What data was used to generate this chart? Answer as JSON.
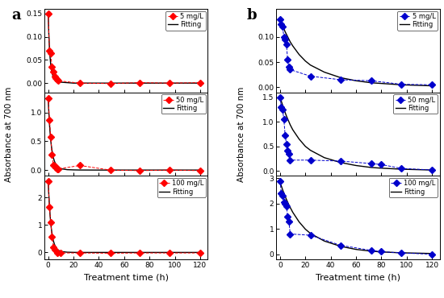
{
  "panel_a_label": "a",
  "panel_b_label": "b",
  "xlabel": "Treatment time (h)",
  "ylabel": "Absorbance at 700 nm",
  "marker_color_a": "#FF0000",
  "marker_color_b": "#0000CC",
  "line_color_fit": "#000000",
  "marker": "D",
  "marker_size": 4,
  "a_5mg_x": [
    0,
    1,
    2,
    3,
    4,
    5,
    6,
    7,
    8,
    25,
    49,
    72,
    96,
    120
  ],
  "a_5mg_y": [
    0.15,
    0.07,
    0.065,
    0.035,
    0.025,
    0.015,
    0.01,
    0.008,
    0.005,
    0.0,
    -0.001,
    0.001,
    0.0,
    0.001
  ],
  "a_5mg_fit_x": [
    0,
    0.5,
    1,
    1.5,
    2,
    2.5,
    3,
    4,
    5,
    6,
    7,
    8,
    10,
    15,
    20,
    25,
    40,
    60,
    80,
    100,
    120
  ],
  "a_5mg_fit_y": [
    0.15,
    0.105,
    0.075,
    0.055,
    0.04,
    0.029,
    0.022,
    0.013,
    0.009,
    0.006,
    0.004,
    0.003,
    0.002,
    0.001,
    0.0,
    0.0,
    0.0,
    0.0,
    0.0,
    0.0,
    0.0
  ],
  "a_5mg_ylim": [
    -0.02,
    0.16
  ],
  "a_5mg_yticks": [
    0.0,
    0.05,
    0.1,
    0.15
  ],
  "a_5mg_label": "5 mg/L",
  "a_50mg_x": [
    0,
    1,
    2,
    3,
    4,
    5,
    6,
    7,
    8,
    25,
    49,
    72,
    96,
    120
  ],
  "a_50mg_y": [
    1.25,
    0.87,
    0.57,
    0.27,
    0.09,
    0.07,
    0.05,
    0.02,
    0.02,
    0.08,
    0.0,
    -0.01,
    0.0,
    -0.01
  ],
  "a_50mg_fit_x": [
    0,
    0.5,
    1,
    1.5,
    2,
    2.5,
    3,
    4,
    5,
    6,
    7,
    8,
    10,
    15,
    20,
    25,
    40,
    60,
    80,
    100,
    120
  ],
  "a_50mg_fit_y": [
    1.25,
    1.0,
    0.8,
    0.65,
    0.52,
    0.42,
    0.34,
    0.22,
    0.15,
    0.1,
    0.068,
    0.047,
    0.023,
    0.007,
    0.003,
    0.001,
    0.0,
    0.0,
    0.0,
    0.0,
    0.0
  ],
  "a_50mg_ylim": [
    -0.1,
    1.35
  ],
  "a_50mg_yticks": [
    0.0,
    0.5,
    1.0
  ],
  "a_50mg_label": "50 mg/L",
  "a_100mg_x": [
    0,
    1,
    2,
    3,
    4,
    5,
    7,
    10,
    25,
    49,
    72,
    96,
    120
  ],
  "a_100mg_y": [
    2.6,
    1.65,
    1.1,
    0.58,
    0.2,
    0.1,
    -0.02,
    -0.02,
    -0.02,
    -0.03,
    -0.02,
    -0.02,
    -0.02
  ],
  "a_100mg_fit_x": [
    0,
    0.5,
    1,
    1.5,
    2,
    2.5,
    3,
    4,
    5,
    6,
    7,
    8,
    10,
    15,
    20,
    25,
    40,
    60,
    80,
    100,
    120
  ],
  "a_100mg_fit_y": [
    2.6,
    2.1,
    1.68,
    1.35,
    1.08,
    0.86,
    0.69,
    0.44,
    0.29,
    0.19,
    0.12,
    0.08,
    0.035,
    0.008,
    0.002,
    0.0,
    0.0,
    0.0,
    0.0,
    0.0,
    0.0
  ],
  "a_100mg_ylim": [
    -0.25,
    2.8
  ],
  "a_100mg_yticks": [
    0,
    1,
    2
  ],
  "a_100mg_label": "100 mg/L",
  "b_5mg_x": [
    0,
    1,
    2,
    3,
    4,
    5,
    6,
    7,
    8,
    24,
    48,
    72,
    96,
    120
  ],
  "b_5mg_y": [
    0.135,
    0.125,
    0.12,
    0.1,
    0.095,
    0.085,
    0.055,
    0.04,
    0.035,
    0.022,
    0.015,
    0.013,
    0.006,
    0.005
  ],
  "b_5mg_fit_x": [
    0,
    1,
    2,
    3,
    4,
    5,
    6,
    7,
    8,
    10,
    15,
    20,
    24,
    35,
    48,
    60,
    72,
    96,
    120
  ],
  "b_5mg_fit_y": [
    0.135,
    0.128,
    0.122,
    0.116,
    0.11,
    0.105,
    0.1,
    0.095,
    0.09,
    0.082,
    0.065,
    0.052,
    0.044,
    0.03,
    0.019,
    0.013,
    0.009,
    0.005,
    0.003
  ],
  "b_5mg_ylim": [
    -0.01,
    0.155
  ],
  "b_5mg_yticks": [
    0.0,
    0.05,
    0.1
  ],
  "b_5mg_label": "5 mg/L",
  "b_50mg_x": [
    0,
    1,
    2,
    3,
    4,
    5,
    6,
    7,
    8,
    24,
    48,
    72,
    80,
    96,
    120
  ],
  "b_50mg_y": [
    1.5,
    1.3,
    1.25,
    1.05,
    0.73,
    0.55,
    0.42,
    0.35,
    0.22,
    0.22,
    0.2,
    0.15,
    0.13,
    0.05,
    0.02
  ],
  "b_50mg_fit_x": [
    0,
    1,
    2,
    3,
    4,
    5,
    6,
    7,
    8,
    10,
    15,
    20,
    24,
    35,
    48,
    60,
    72,
    80,
    96,
    120
  ],
  "b_50mg_fit_y": [
    1.5,
    1.42,
    1.34,
    1.26,
    1.19,
    1.12,
    1.06,
    1.0,
    0.94,
    0.84,
    0.65,
    0.5,
    0.42,
    0.27,
    0.17,
    0.11,
    0.07,
    0.056,
    0.035,
    0.018
  ],
  "b_50mg_ylim": [
    -0.1,
    1.6
  ],
  "b_50mg_yticks": [
    0.0,
    0.5,
    1.0,
    1.5
  ],
  "b_50mg_label": "50 mg/L",
  "b_100mg_x": [
    0,
    1,
    2,
    3,
    4,
    5,
    6,
    7,
    8,
    24,
    48,
    72,
    80,
    96,
    120
  ],
  "b_100mg_y": [
    2.9,
    2.4,
    2.3,
    2.05,
    2.0,
    1.9,
    1.5,
    1.3,
    0.8,
    0.75,
    0.35,
    0.15,
    0.1,
    0.05,
    0.0
  ],
  "b_100mg_fit_x": [
    0,
    1,
    2,
    3,
    4,
    5,
    6,
    7,
    8,
    10,
    15,
    20,
    24,
    35,
    48,
    60,
    72,
    80,
    96,
    120
  ],
  "b_100mg_fit_y": [
    2.8,
    2.7,
    2.55,
    2.42,
    2.29,
    2.17,
    2.06,
    1.95,
    1.85,
    1.66,
    1.28,
    0.99,
    0.82,
    0.52,
    0.31,
    0.19,
    0.12,
    0.09,
    0.055,
    0.028
  ],
  "b_100mg_ylim": [
    -0.2,
    3.1
  ],
  "b_100mg_yticks": [
    0,
    1,
    2,
    3
  ],
  "b_100mg_label": "100 mg/L",
  "xticks_a": [
    0,
    20,
    40,
    60,
    80,
    100,
    120
  ],
  "xticks_b": [
    0,
    20,
    40,
    60,
    80,
    100,
    120
  ],
  "xlim_a": [
    -3,
    126
  ],
  "xlim_b": [
    -3,
    126
  ]
}
